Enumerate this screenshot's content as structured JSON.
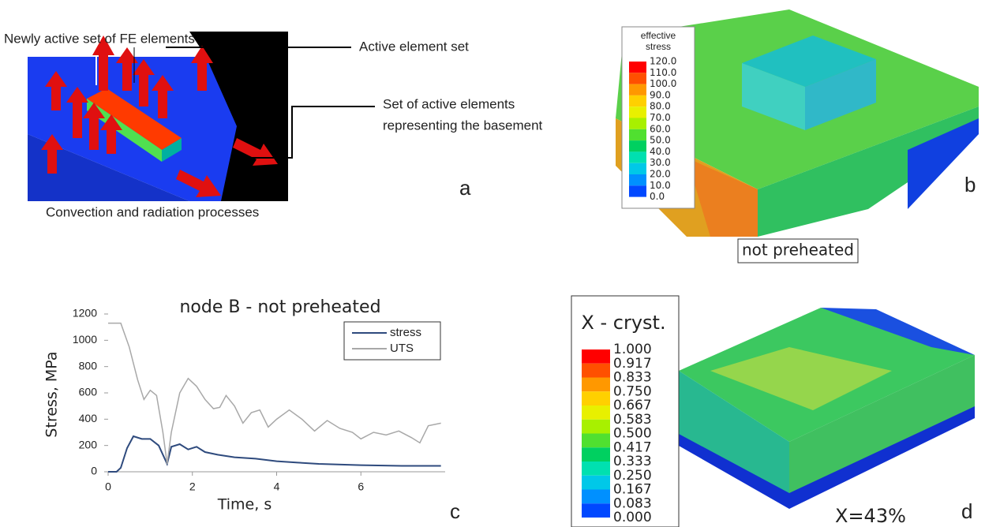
{
  "panel_a": {
    "labels": [
      "Newly active set of FE elements",
      "Active element set",
      "Set of active elements",
      "representing the basement",
      "Convection and radiation processes"
    ],
    "letter": "a"
  },
  "panel_b": {
    "legend_title": [
      "effective",
      "stress"
    ],
    "legend_values": [
      "120.0",
      "110.0",
      "100.0",
      "90.0",
      "80.0",
      "70.0",
      "60.0",
      "50.0",
      "40.0",
      "30.0",
      "20.0",
      "10.0",
      "0.0"
    ],
    "caption": "not preheated",
    "letter": "b"
  },
  "chart_data": {
    "type": "line",
    "title": "node B - not preheated",
    "x_label": "Time, s",
    "y_label": "Stress, MPa",
    "letter": "c",
    "xlim": [
      0,
      8
    ],
    "ylim": [
      0,
      1200
    ],
    "xticks": [
      0,
      2,
      4,
      6
    ],
    "yticks": [
      0,
      200,
      400,
      600,
      800,
      1000,
      1200
    ],
    "series": [
      {
        "name": "stress",
        "color": "#2e4a7d",
        "x": [
          0,
          0.2,
          0.3,
          0.45,
          0.6,
          0.8,
          1.0,
          1.2,
          1.4,
          1.5,
          1.7,
          1.9,
          2.1,
          2.3,
          2.6,
          3.0,
          3.5,
          4.0,
          4.5,
          5,
          6,
          7,
          7.9
        ],
        "values": [
          0,
          0,
          30,
          180,
          270,
          250,
          250,
          200,
          60,
          190,
          210,
          170,
          190,
          150,
          130,
          110,
          100,
          80,
          70,
          60,
          50,
          45,
          45
        ]
      },
      {
        "name": "UTS",
        "color": "#a8a8a8",
        "x": [
          0,
          0.3,
          0.5,
          0.7,
          0.85,
          1.0,
          1.15,
          1.3,
          1.4,
          1.5,
          1.7,
          1.9,
          2.1,
          2.3,
          2.5,
          2.65,
          2.8,
          3.0,
          3.2,
          3.4,
          3.6,
          3.8,
          4.0,
          4.3,
          4.6,
          4.9,
          5.2,
          5.5,
          5.8,
          6.0,
          6.3,
          6.6,
          6.9,
          7.2,
          7.4,
          7.6,
          7.9
        ],
        "values": [
          1130,
          1130,
          950,
          700,
          550,
          620,
          580,
          300,
          60,
          300,
          600,
          710,
          650,
          550,
          480,
          490,
          580,
          500,
          370,
          450,
          470,
          340,
          400,
          470,
          400,
          310,
          390,
          330,
          300,
          250,
          300,
          280,
          310,
          260,
          220,
          350,
          370
        ]
      }
    ]
  },
  "panel_d": {
    "legend_title": "X - cryst.",
    "legend_values": [
      "1.000",
      "0.917",
      "0.833",
      "0.750",
      "0.667",
      "0.583",
      "0.500",
      "0.417",
      "0.333",
      "0.250",
      "0.167",
      "0.083",
      "0.000"
    ],
    "annotation": "X=43%",
    "letter": "d"
  }
}
